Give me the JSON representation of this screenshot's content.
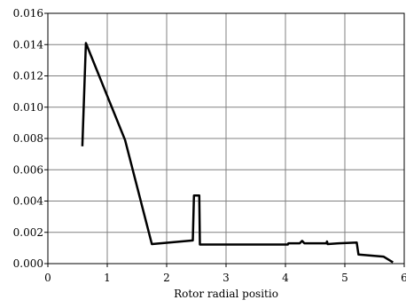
{
  "chart_data": {
    "type": "line",
    "xlabel": "Rotor radial positio",
    "ylabel": "",
    "title": "",
    "xlim": [
      0,
      6
    ],
    "ylim": [
      0,
      0.016
    ],
    "grid": true,
    "x_ticks": [
      "0",
      "1",
      "2",
      "3",
      "4",
      "5",
      "6"
    ],
    "y_ticks": [
      "0.000",
      "0.002",
      "0.004",
      "0.006",
      "0.008",
      "0.010",
      "0.012",
      "0.014",
      "0.016"
    ],
    "series": [
      {
        "name": "",
        "color": "#000000",
        "points": [
          [
            0.58,
            0.0075
          ],
          [
            0.64,
            0.0141
          ],
          [
            1.3,
            0.0079
          ],
          [
            1.75,
            0.00125
          ],
          [
            2.44,
            0.00148
          ],
          [
            2.46,
            0.00435
          ],
          [
            2.55,
            0.00435
          ],
          [
            2.56,
            0.00122
          ],
          [
            4.04,
            0.00122
          ],
          [
            4.05,
            0.0013
          ],
          [
            4.24,
            0.0013
          ],
          [
            4.28,
            0.00145
          ],
          [
            4.32,
            0.0013
          ],
          [
            4.69,
            0.0013
          ],
          [
            4.7,
            0.00142
          ],
          [
            4.71,
            0.00125
          ],
          [
            4.9,
            0.0013
          ],
          [
            5.2,
            0.00135
          ],
          [
            5.23,
            0.00058
          ],
          [
            5.65,
            0.00045
          ],
          [
            5.81,
            8e-05
          ]
        ]
      }
    ]
  }
}
